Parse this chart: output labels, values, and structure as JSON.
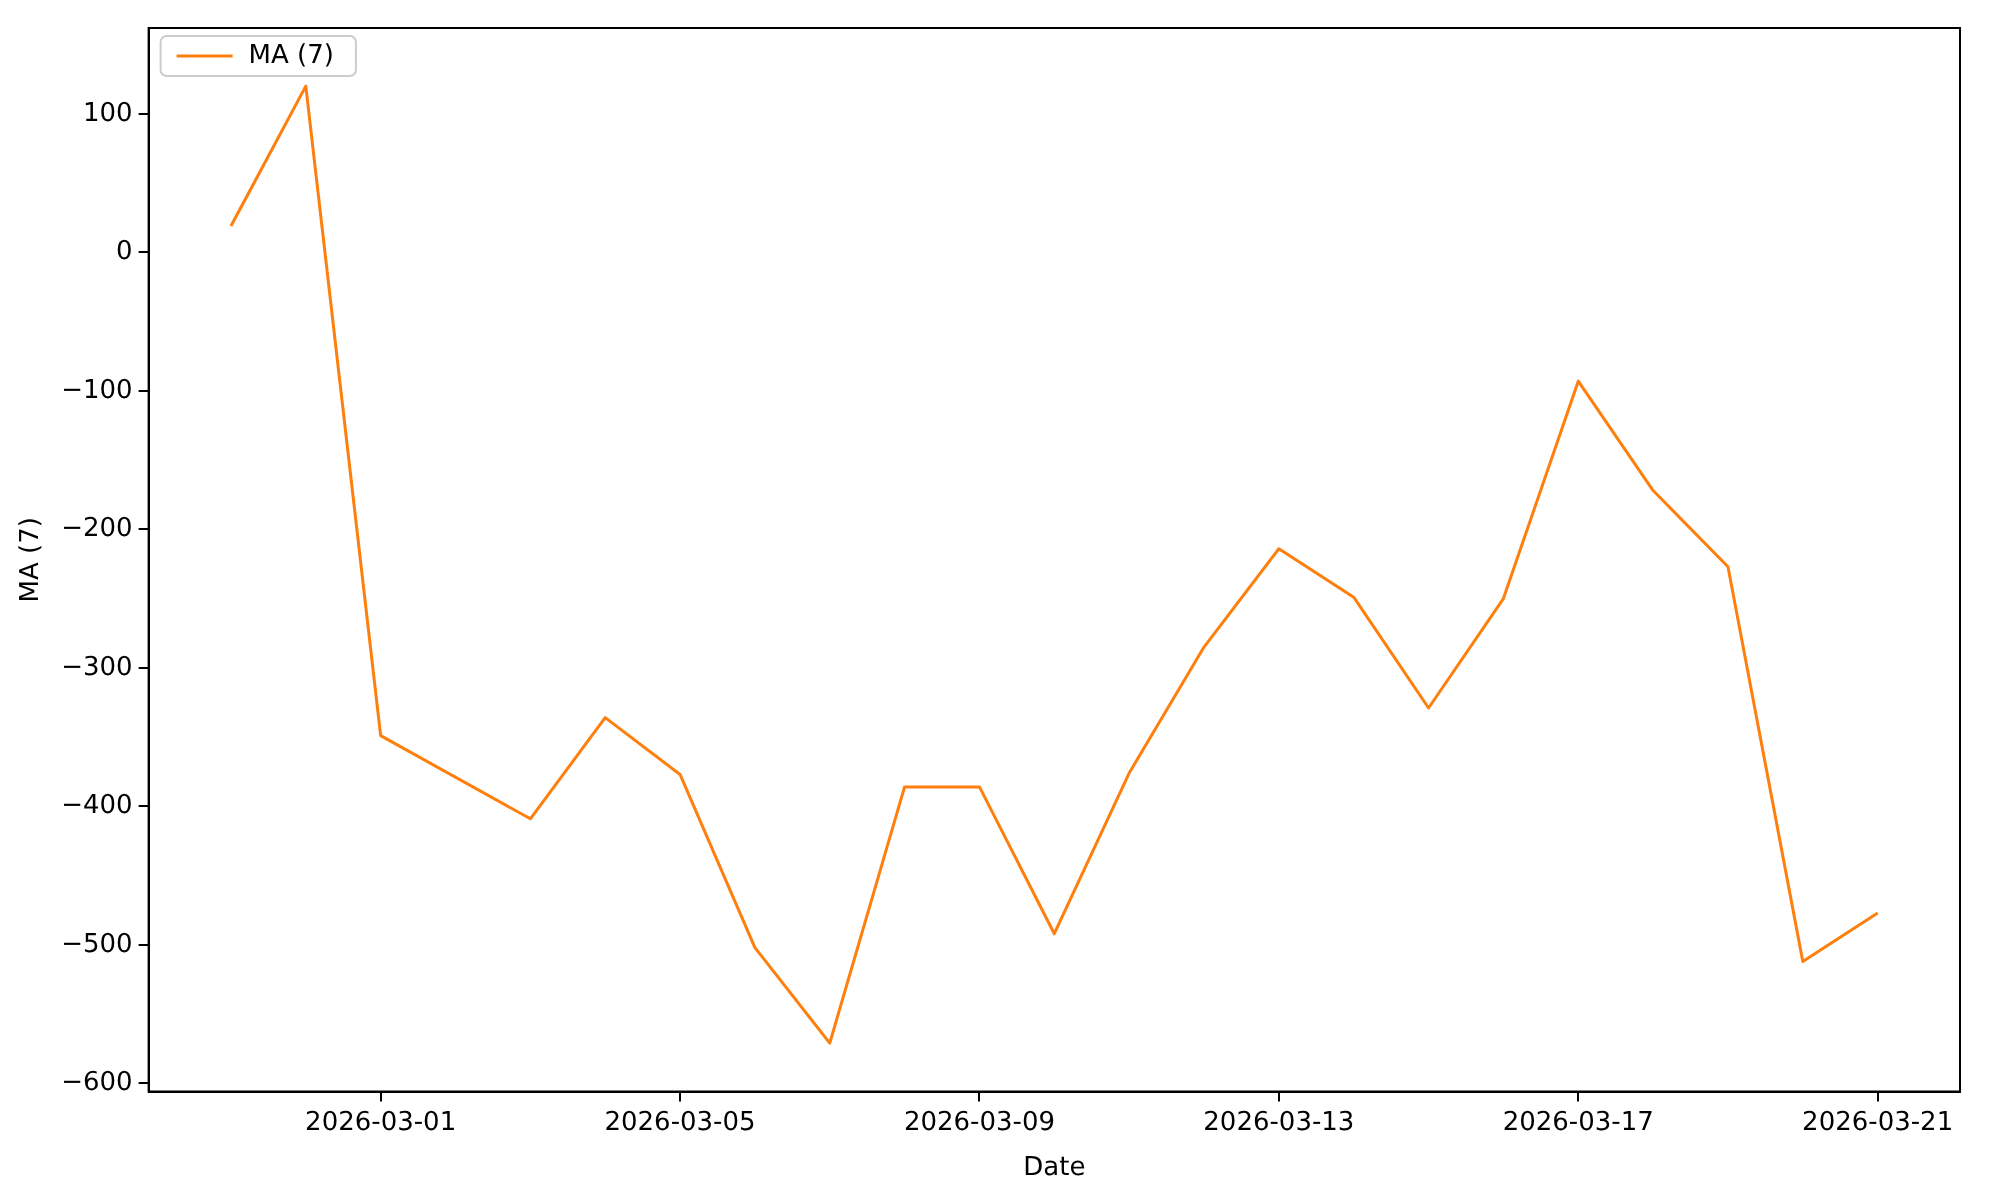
{
  "chart_data": {
    "type": "line",
    "xlabel": "Date",
    "ylabel": "MA (7)",
    "x": [
      "2026-02-27",
      "2026-02-28",
      "2026-03-01",
      "2026-03-03",
      "2026-03-04",
      "2026-03-05",
      "2026-03-06",
      "2026-03-07",
      "2026-03-08",
      "2026-03-09",
      "2026-03-10",
      "2026-03-11",
      "2026-03-12",
      "2026-03-13",
      "2026-03-14",
      "2026-03-15",
      "2026-03-16",
      "2026-03-17",
      "2026-03-18",
      "2026-03-19",
      "2026-03-20",
      "2026-03-21"
    ],
    "series": [
      {
        "name": "MA (7)",
        "color": "#ff7f0e",
        "values": [
          19,
          120,
          -349,
          -409,
          -336,
          -377,
          -502,
          -571,
          -386,
          -386,
          -492,
          -376,
          -285,
          -214,
          -249,
          -329,
          -250,
          -93,
          -172,
          -227,
          -512,
          -477
        ]
      }
    ],
    "xlim": [
      "2026-02-25T21:36",
      "2026-03-22T02:24"
    ],
    "xticks": [
      "2026-03-01",
      "2026-03-05",
      "2026-03-09",
      "2026-03-13",
      "2026-03-17",
      "2026-03-21"
    ],
    "ylim": [
      -606,
      162
    ],
    "yticks": [
      {
        "value": -600,
        "label": "−600"
      },
      {
        "value": -500,
        "label": "−500"
      },
      {
        "value": -400,
        "label": "−400"
      },
      {
        "value": -300,
        "label": "−300"
      },
      {
        "value": -200,
        "label": "−200"
      },
      {
        "value": -100,
        "label": "−100"
      },
      0,
      100
    ],
    "legend": "top left",
    "grid": false,
    "line_style": "solid",
    "marker": "none"
  }
}
